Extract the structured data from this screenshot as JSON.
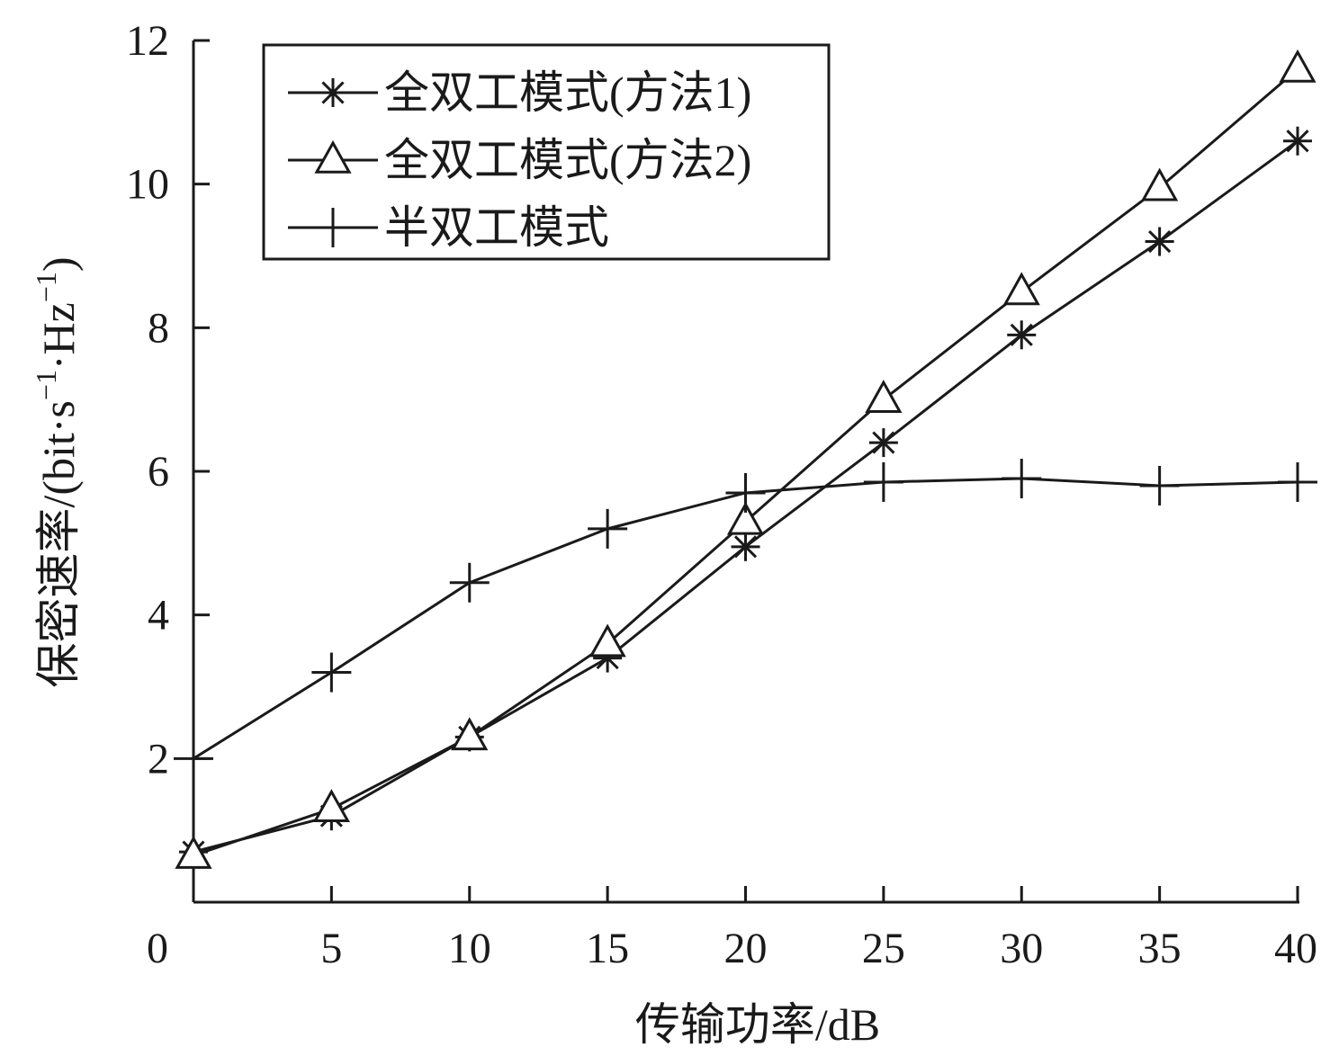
{
  "chart_data": {
    "type": "line",
    "title": "",
    "xlabel": "传输功率/dB",
    "ylabel": "保密速率/(bit·s",
    "ylabel_sup1": "−1",
    "ylabel_mid": "·Hz",
    "ylabel_sup2": "−1",
    "ylabel_end": ")",
    "xlim": [
      0,
      40
    ],
    "ylim": [
      0,
      12
    ],
    "x_ticks": [
      0,
      5,
      10,
      15,
      20,
      25,
      30,
      35,
      40
    ],
    "x_tick_labels": [
      "0",
      "5",
      "10",
      "15",
      "20",
      "25",
      "30",
      "35",
      "40"
    ],
    "y_ticks": [
      2,
      4,
      6,
      8,
      10,
      12
    ],
    "y_tick_labels": [
      "2",
      "4",
      "6",
      "8",
      "10",
      "12"
    ],
    "grid": false,
    "legend_position": "top-left",
    "color": "#1a1a1a",
    "x": [
      0,
      5,
      10,
      15,
      20,
      25,
      30,
      35,
      40
    ],
    "series": [
      {
        "name": "全双工模式(方法1)",
        "marker": "asterisk",
        "values": [
          0.7,
          1.2,
          2.3,
          3.4,
          4.95,
          6.4,
          7.9,
          9.2,
          10.6
        ]
      },
      {
        "name": "全双工模式(方法2)",
        "marker": "triangle",
        "values": [
          0.65,
          1.3,
          2.3,
          3.6,
          5.3,
          7.0,
          8.5,
          9.95,
          11.6
        ]
      },
      {
        "name": "半双工模式",
        "marker": "plus",
        "values": [
          2.0,
          3.2,
          4.45,
          5.2,
          5.7,
          5.85,
          5.9,
          5.8,
          5.85
        ]
      }
    ]
  }
}
